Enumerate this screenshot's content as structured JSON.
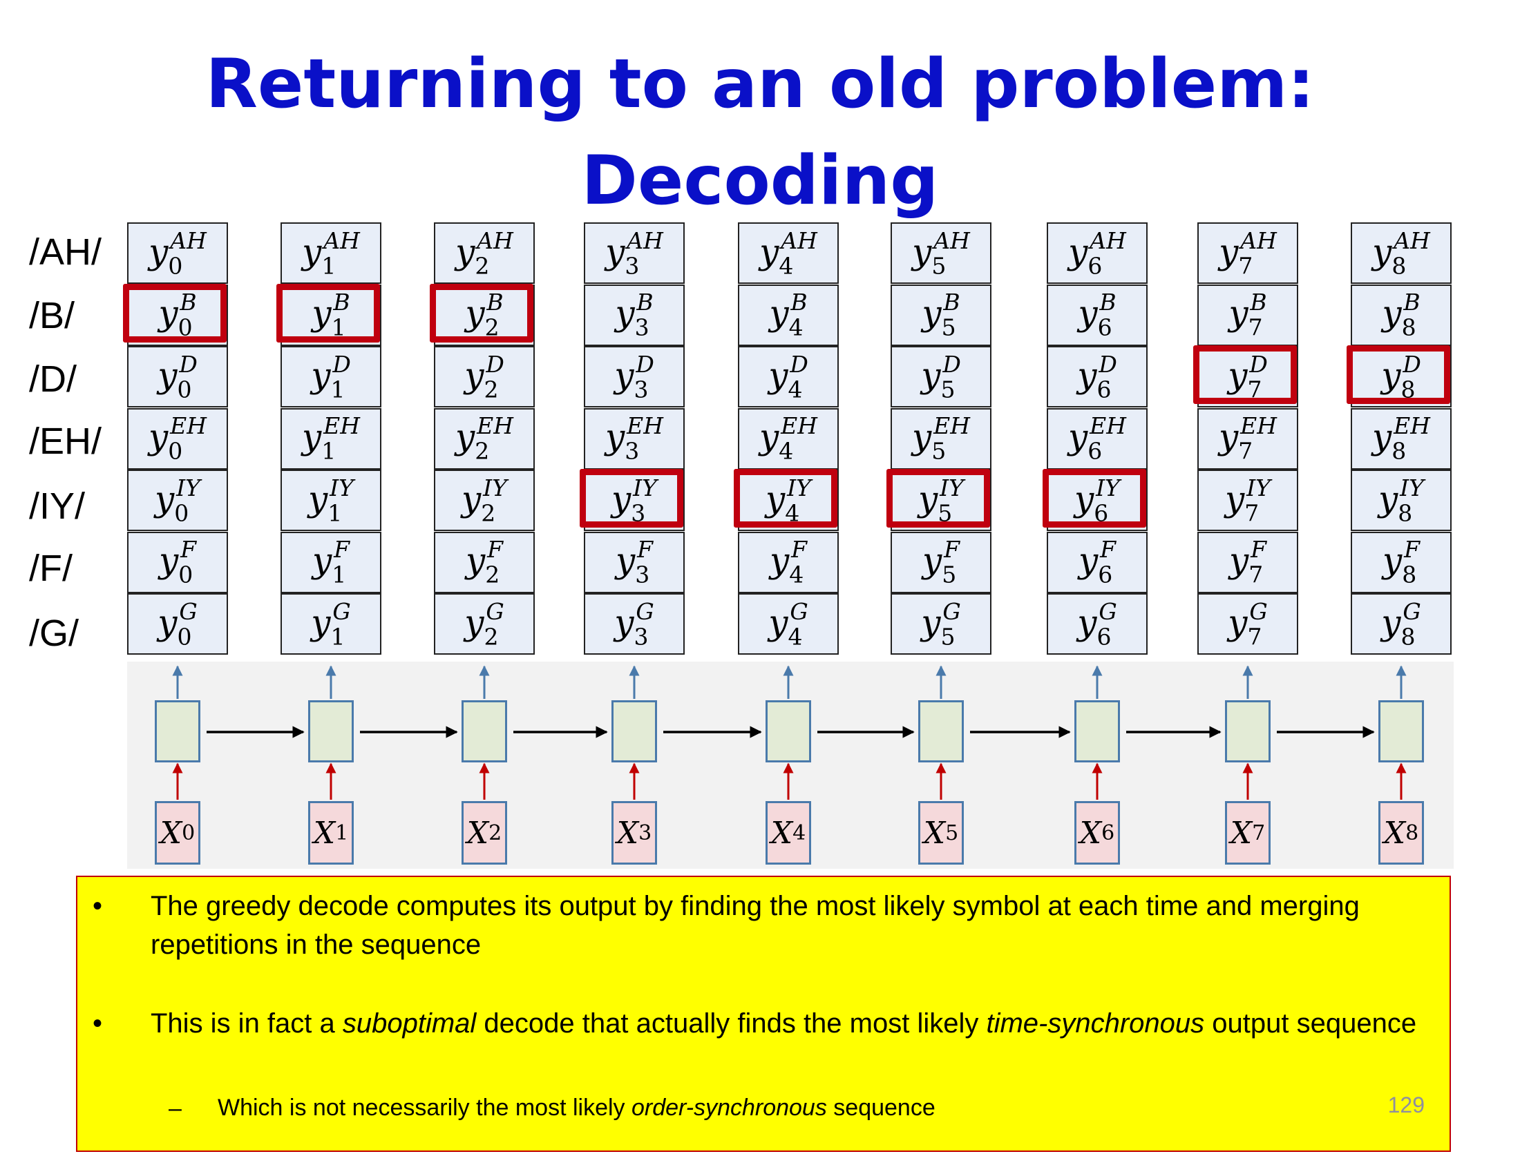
{
  "title": {
    "line1": "Returning to an old problem:",
    "line2": "Decoding"
  },
  "symbols": [
    {
      "label": "/AH/",
      "sup": "AH"
    },
    {
      "label": "/B/",
      "sup": "B"
    },
    {
      "label": "/D/",
      "sup": "D"
    },
    {
      "label": "/EH/",
      "sup": "EH"
    },
    {
      "label": "/IY/",
      "sup": "IY"
    },
    {
      "label": "/F/",
      "sup": "F"
    },
    {
      "label": "/G/",
      "sup": "G"
    }
  ],
  "output_var": "y",
  "input_var": "X",
  "time_steps": [
    "0",
    "1",
    "2",
    "3",
    "4",
    "5",
    "6",
    "7",
    "8"
  ],
  "greedy_path": [
    "/B/",
    "/B/",
    "/B/",
    "/IY/",
    "/IY/",
    "/IY/",
    "/IY/",
    "/D/",
    "/D/"
  ],
  "colors": {
    "title": "#0a10c8",
    "highlight": "#c0000f",
    "note_bg": "#ffff00",
    "input_arrow": "#c00000",
    "output_arrow": "#4a7aab"
  },
  "notes": {
    "bullet1": "The greedy decode computes its output by finding the most likely symbol at each time and merging repetitions in the sequence",
    "bullet2": {
      "pre": "This is in fact a ",
      "em1": "suboptimal",
      "mid": " decode that actually finds the most likely ",
      "em2": "time-synchronous",
      "post": " output sequence"
    },
    "sub1": {
      "pre": "Which is not necessarily the most likely ",
      "em": "order-synchronous",
      "post": " sequence"
    }
  },
  "page_number": "129"
}
